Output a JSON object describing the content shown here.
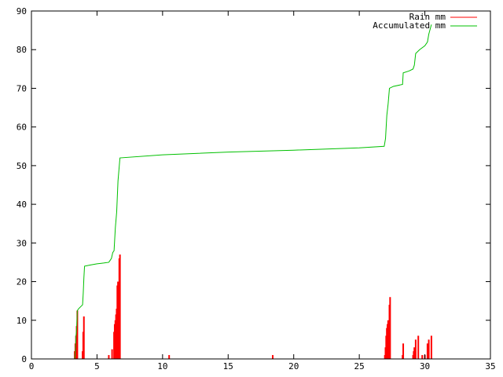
{
  "chart_data": {
    "type": "bar+line",
    "title": "",
    "xlabel": "",
    "ylabel": "",
    "xlim": [
      0,
      35
    ],
    "ylim": [
      0,
      90
    ],
    "xticks": [
      0,
      5,
      10,
      15,
      20,
      25,
      30,
      35
    ],
    "yticks": [
      0,
      10,
      20,
      30,
      40,
      50,
      60,
      70,
      80,
      90
    ],
    "grid": false,
    "legend_position": "top-right",
    "series": [
      {
        "name": "Rain mm",
        "style": "impulses",
        "color": "#ff0000",
        "points": [
          [
            3.3,
            2
          ],
          [
            3.35,
            4
          ],
          [
            3.4,
            6
          ],
          [
            3.45,
            8.5
          ],
          [
            3.5,
            12.5
          ],
          [
            3.9,
            2
          ],
          [
            3.95,
            7
          ],
          [
            4.0,
            11
          ],
          [
            5.9,
            1
          ],
          [
            6.15,
            2.5
          ],
          [
            6.3,
            7
          ],
          [
            6.35,
            9
          ],
          [
            6.4,
            10
          ],
          [
            6.45,
            11.5
          ],
          [
            6.5,
            13
          ],
          [
            6.55,
            19
          ],
          [
            6.6,
            20
          ],
          [
            6.7,
            26
          ],
          [
            6.75,
            27
          ],
          [
            10.5,
            1
          ],
          [
            18.4,
            1
          ],
          [
            26.95,
            1
          ],
          [
            27.0,
            3
          ],
          [
            27.05,
            6
          ],
          [
            27.1,
            8
          ],
          [
            27.15,
            9
          ],
          [
            27.2,
            10
          ],
          [
            27.3,
            14
          ],
          [
            27.35,
            16
          ],
          [
            28.3,
            1
          ],
          [
            28.35,
            4
          ],
          [
            29.1,
            1
          ],
          [
            29.15,
            2
          ],
          [
            29.2,
            3
          ],
          [
            29.3,
            5
          ],
          [
            29.5,
            6
          ],
          [
            29.8,
            1
          ],
          [
            30.0,
            1
          ],
          [
            30.2,
            4
          ],
          [
            30.3,
            5
          ],
          [
            30.5,
            6
          ]
        ]
      },
      {
        "name": "Accumulated mm",
        "style": "lines",
        "color": "#00c000",
        "points": [
          [
            3.3,
            0
          ],
          [
            3.35,
            2
          ],
          [
            3.4,
            6
          ],
          [
            3.45,
            8
          ],
          [
            3.5,
            12.5
          ],
          [
            3.6,
            13
          ],
          [
            3.9,
            14
          ],
          [
            3.95,
            17
          ],
          [
            4.0,
            21
          ],
          [
            4.05,
            24
          ],
          [
            4.5,
            24.3
          ],
          [
            5.0,
            24.6
          ],
          [
            5.5,
            24.8
          ],
          [
            5.9,
            25
          ],
          [
            6.1,
            26
          ],
          [
            6.2,
            27.5
          ],
          [
            6.3,
            28
          ],
          [
            6.35,
            31
          ],
          [
            6.4,
            34
          ],
          [
            6.45,
            36
          ],
          [
            6.5,
            38
          ],
          [
            6.55,
            42
          ],
          [
            6.6,
            46
          ],
          [
            6.7,
            50
          ],
          [
            6.75,
            52
          ],
          [
            10,
            52.8
          ],
          [
            15,
            53.5
          ],
          [
            20,
            54
          ],
          [
            25,
            54.6
          ],
          [
            26.9,
            55
          ],
          [
            27.0,
            57
          ],
          [
            27.05,
            60
          ],
          [
            27.1,
            63
          ],
          [
            27.2,
            66
          ],
          [
            27.3,
            70
          ],
          [
            27.6,
            70.5
          ],
          [
            28.3,
            71
          ],
          [
            28.35,
            74
          ],
          [
            28.8,
            74.5
          ],
          [
            29.1,
            75
          ],
          [
            29.2,
            76
          ],
          [
            29.3,
            79
          ],
          [
            29.6,
            80
          ],
          [
            30.0,
            81
          ],
          [
            30.2,
            82
          ],
          [
            30.3,
            84
          ],
          [
            30.5,
            86.5
          ]
        ]
      }
    ]
  }
}
